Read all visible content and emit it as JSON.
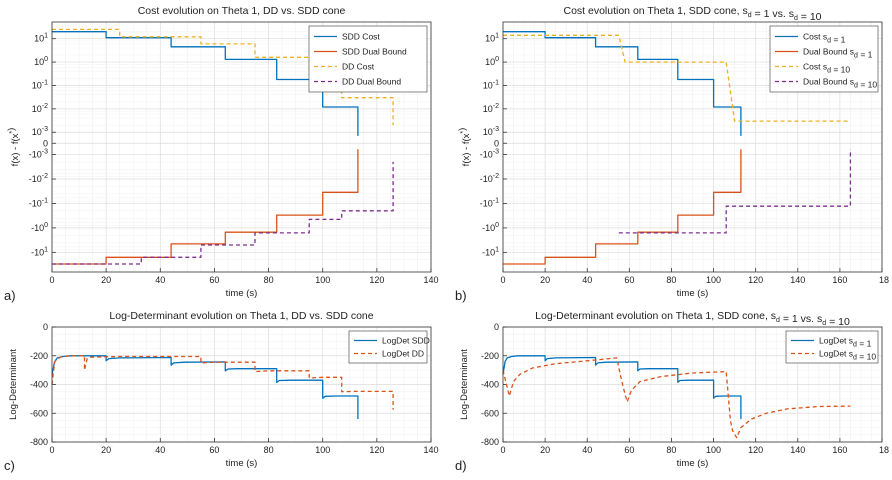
{
  "chart_data": [
    {
      "panel": "a)",
      "type": "line",
      "title": "Cost evolution on Theta 1, DD vs. SDD cone",
      "xlabel": "time (s)",
      "ylabel": "f(x) - f(x*)",
      "xlim": [
        0,
        140
      ],
      "x_ticks": [
        "0",
        "20",
        "40",
        "60",
        "80",
        "100",
        "120",
        "140"
      ],
      "y_ticks": [
        "10^1",
        "10^0",
        "10^-1",
        "10^-2",
        "10^-3",
        "0",
        "-10^-3",
        "-10^-2",
        "-10^-1",
        "-10^0",
        "-10^1"
      ],
      "scale": "symmetric log (upper positive, lower negative)",
      "grid": true,
      "legend_position": "top-right",
      "series": [
        {
          "name": "SDD Cost",
          "color": "#0072BD",
          "style": "solid",
          "x": [
            0,
            20,
            20,
            44,
            44,
            64,
            64,
            83,
            83,
            100,
            100,
            113,
            113
          ],
          "y": [
            20,
            20,
            11,
            11,
            4.5,
            4.5,
            1.3,
            1.3,
            0.18,
            0.18,
            0.012,
            0.012,
            0.0007
          ]
        },
        {
          "name": "SDD Dual Bound",
          "color": "#D95319",
          "style": "solid",
          "x": [
            0,
            20,
            20,
            44,
            44,
            64,
            64,
            83,
            83,
            100,
            100,
            113,
            113
          ],
          "y": [
            -30,
            -30,
            -16,
            -16,
            -4.5,
            -4.5,
            -1.5,
            -1.5,
            -0.3,
            -0.3,
            -0.035,
            -0.035,
            -0.0006
          ]
        },
        {
          "name": "DD Cost",
          "color": "#EDB120",
          "style": "dashed",
          "x": [
            0,
            25,
            25,
            55,
            55,
            75,
            75,
            95,
            95,
            107,
            107,
            126,
            126
          ],
          "y": [
            25,
            25,
            12,
            12,
            6,
            6,
            1.6,
            1.6,
            0.28,
            0.28,
            0.03,
            0.03,
            0.002
          ]
        },
        {
          "name": "DD Dual Bound",
          "color": "#7E2F8E",
          "style": "dashed",
          "x": [
            0,
            33,
            33,
            55,
            55,
            75,
            75,
            95,
            95,
            107,
            107,
            126,
            126
          ],
          "y": [
            -30,
            -30,
            -16,
            -16,
            -5,
            -5,
            -1.6,
            -1.6,
            -0.45,
            -0.45,
            -0.2,
            -0.2,
            -0.002
          ]
        }
      ]
    },
    {
      "panel": "b)",
      "type": "line",
      "title": "Cost evolution on Theta 1, SDD cone, s_d = 1 vs. s_d = 10",
      "xlabel": "time (s)",
      "ylabel": "f(x) - f(x*)",
      "xlim": [
        0,
        180
      ],
      "x_ticks": [
        "0",
        "20",
        "40",
        "60",
        "80",
        "100",
        "120",
        "140",
        "160",
        "18"
      ],
      "y_ticks": [
        "10^1",
        "10^0",
        "10^-1",
        "10^-2",
        "10^-3",
        "0",
        "-10^-3",
        "-10^-2",
        "-10^-1",
        "-10^0",
        "-10^1"
      ],
      "scale": "symmetric log (upper positive, lower negative)",
      "grid": true,
      "legend_position": "top-right",
      "series": [
        {
          "name": "Cost s_d = 1",
          "color": "#0072BD",
          "style": "solid",
          "x": [
            0,
            20,
            20,
            44,
            44,
            64,
            64,
            83,
            83,
            100,
            100,
            113,
            113
          ],
          "y": [
            20,
            20,
            11,
            11,
            4.5,
            4.5,
            1.3,
            1.3,
            0.18,
            0.18,
            0.012,
            0.012,
            0.0007
          ]
        },
        {
          "name": "Dual Bound s_d = 1",
          "color": "#D95319",
          "style": "solid",
          "x": [
            0,
            20,
            20,
            44,
            44,
            64,
            64,
            83,
            83,
            100,
            100,
            113,
            113
          ],
          "y": [
            -30,
            -30,
            -16,
            -16,
            -4.5,
            -4.5,
            -1.5,
            -1.5,
            -0.3,
            -0.3,
            -0.035,
            -0.035,
            -0.0006
          ]
        },
        {
          "name": "Cost s_d = 10",
          "color": "#EDB120",
          "style": "dashed",
          "x": [
            0,
            55,
            58,
            58,
            106,
            110,
            110,
            165
          ],
          "y": [
            14,
            14,
            1.0,
            1.0,
            1.0,
            0.003,
            0.003,
            0.003
          ]
        },
        {
          "name": "Dual Bound s_d = 10",
          "color": "#7E2F8E",
          "style": "dashed",
          "x": [
            55,
            106,
            106,
            165,
            165
          ],
          "y": [
            -1.6,
            -1.6,
            -0.13,
            -0.13,
            -0.0006
          ]
        }
      ]
    },
    {
      "panel": "c)",
      "type": "line",
      "title": "Log-Determinant evolution on Theta 1, DD vs. SDD cone",
      "xlabel": "time (s)",
      "ylabel": "Log-Determinant",
      "xlim": [
        0,
        140
      ],
      "ylim": [
        -800,
        0
      ],
      "x_ticks": [
        "0",
        "20",
        "40",
        "60",
        "80",
        "100",
        "120",
        "140"
      ],
      "y_ticks": [
        "0",
        "-200",
        "-400",
        "-600",
        "-800"
      ],
      "grid": true,
      "legend_position": "top-right",
      "series": [
        {
          "name": "LogDet SDD",
          "color": "#0072BD",
          "style": "solid",
          "x": [
            0,
            1,
            2,
            4,
            7,
            20,
            20,
            21,
            25,
            44,
            44,
            45,
            49,
            64,
            64,
            65,
            69,
            83,
            83,
            84,
            88,
            100,
            100,
            101,
            105,
            113,
            113
          ],
          "y": [
            -330,
            -240,
            -215,
            -205,
            -200,
            -200,
            -235,
            -220,
            -215,
            -212,
            -265,
            -250,
            -245,
            -243,
            -305,
            -292,
            -290,
            -290,
            -385,
            -372,
            -370,
            -370,
            -495,
            -482,
            -480,
            -480,
            -640
          ]
        },
        {
          "name": "LogDet DD",
          "color": "#D95319",
          "style": "dashed",
          "x": [
            0,
            1,
            3,
            6,
            12,
            12,
            13,
            14,
            25,
            45,
            55,
            55,
            60,
            75,
            75,
            80,
            95,
            95,
            100,
            107,
            107,
            112,
            126,
            126
          ],
          "y": [
            -400,
            -240,
            -210,
            -200,
            -200,
            -300,
            -220,
            -210,
            -205,
            -205,
            -205,
            -250,
            -245,
            -245,
            -310,
            -305,
            -305,
            -355,
            -350,
            -350,
            -450,
            -448,
            -448,
            -575
          ]
        }
      ]
    },
    {
      "panel": "d)",
      "type": "line",
      "title": "Log-Determinant evolution on Theta 1, SDD cone, s_d = 1 vs. s_d = 10",
      "xlabel": "time (s)",
      "ylabel": "Log-Determinant",
      "xlim": [
        0,
        180
      ],
      "ylim": [
        -800,
        0
      ],
      "x_ticks": [
        "0",
        "20",
        "40",
        "60",
        "80",
        "100",
        "120",
        "140",
        "160",
        "18"
      ],
      "y_ticks": [
        "0",
        "-200",
        "-400",
        "-600",
        "-800"
      ],
      "grid": true,
      "legend_position": "top-right",
      "series": [
        {
          "name": "LogDet s_d = 1",
          "color": "#0072BD",
          "style": "solid",
          "x": [
            0,
            1,
            2,
            4,
            7,
            20,
            20,
            21,
            25,
            44,
            44,
            45,
            49,
            64,
            64,
            65,
            69,
            83,
            83,
            84,
            88,
            100,
            100,
            101,
            105,
            113,
            113
          ],
          "y": [
            -330,
            -240,
            -215,
            -205,
            -200,
            -200,
            -235,
            -220,
            -215,
            -212,
            -265,
            -250,
            -245,
            -243,
            -305,
            -292,
            -290,
            -290,
            -385,
            -372,
            -370,
            -370,
            -495,
            -482,
            -480,
            -480,
            -640
          ]
        },
        {
          "name": "LogDet s_d = 10",
          "color": "#D95319",
          "style": "dashed",
          "x": [
            0,
            2,
            3,
            5,
            8,
            14,
            25,
            40,
            52,
            54,
            56,
            58,
            59,
            61,
            65,
            75,
            90,
            106,
            108,
            109,
            111,
            113,
            118,
            125,
            135,
            150,
            165
          ],
          "y": [
            -300,
            -420,
            -480,
            -380,
            -330,
            -285,
            -255,
            -235,
            -218,
            -215,
            -350,
            -470,
            -520,
            -440,
            -380,
            -345,
            -320,
            -310,
            -650,
            -720,
            -770,
            -700,
            -640,
            -600,
            -570,
            -553,
            -550
          ]
        }
      ]
    }
  ],
  "panel_letters": [
    "a)",
    "b)",
    "c)",
    "d)"
  ]
}
